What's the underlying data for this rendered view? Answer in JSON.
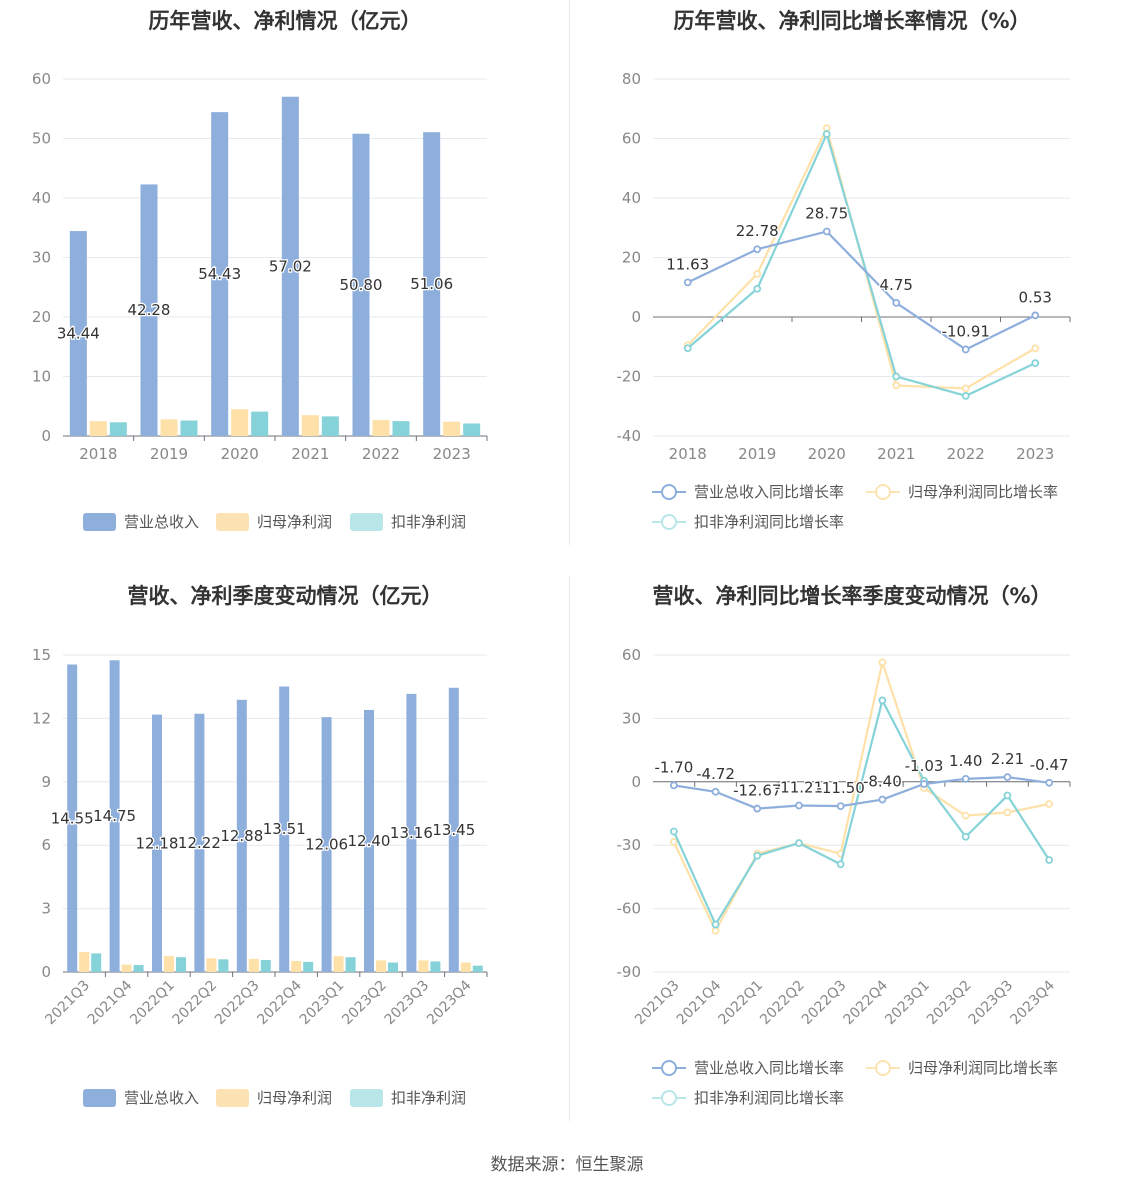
{
  "source": "数据来源：恒生聚源",
  "colors": {
    "revenue": "#8eaedc",
    "net_profit": "#fde1a8",
    "deducted_profit": "#85d3d8",
    "revenue_legend": "#8eaedc",
    "net_profit_legend": "#fde3b3",
    "deducted_profit_legend": "#b9e6e8"
  },
  "panels": [
    {
      "title": "历年营收、净利情况（亿元）",
      "legend": [
        "营业总收入",
        "归母净利润",
        "扣非净利润"
      ],
      "chart_data": {
        "type": "bar",
        "categories": [
          "2018",
          "2019",
          "2020",
          "2021",
          "2022",
          "2023"
        ],
        "series": [
          {
            "name": "营业总收入",
            "values": [
              34.44,
              42.28,
              54.43,
              57.02,
              50.8,
              51.06
            ]
          },
          {
            "name": "归母净利润",
            "values": [
              2.5,
              2.8,
              4.5,
              3.5,
              2.7,
              2.4
            ]
          },
          {
            "name": "扣非净利润",
            "values": [
              2.3,
              2.6,
              4.1,
              3.3,
              2.5,
              2.1
            ]
          }
        ],
        "value_labels": [
          "34.44",
          "42.28",
          "54.43",
          "57.02",
          "50.80",
          "51.06"
        ],
        "ylim": [
          0,
          60
        ],
        "yticks": [
          "0",
          "10",
          "20",
          "30",
          "40",
          "50",
          "60"
        ],
        "grid": true,
        "legend_position": "bottom"
      }
    },
    {
      "title": "历年营收、净利同比增长率情况（%）",
      "legend": [
        "营业总收入同比增长率",
        "归母净利润同比增长率",
        "扣非净利润同比增长率"
      ],
      "chart_data": {
        "type": "line",
        "categories": [
          "2018",
          "2019",
          "2020",
          "2021",
          "2022",
          "2023"
        ],
        "series": [
          {
            "name": "营业总收入同比增长率",
            "values": [
              11.63,
              22.78,
              28.75,
              4.75,
              -10.91,
              0.53
            ]
          },
          {
            "name": "归母净利润同比增长率",
            "values": [
              -9.5,
              14.5,
              63.5,
              -23,
              -24,
              -10.5
            ]
          },
          {
            "name": "扣非净利润同比增长率",
            "values": [
              -10.5,
              9.5,
              61.5,
              -20,
              -26.5,
              -15.5
            ]
          }
        ],
        "value_labels": [
          "11.63",
          "22.78",
          "28.75",
          "4.75",
          "-10.91",
          "0.53"
        ],
        "ylim": [
          -40,
          80
        ],
        "yticks": [
          "-40",
          "-20",
          "0",
          "20",
          "40",
          "60",
          "80"
        ],
        "grid": true,
        "legend_position": "bottom"
      }
    },
    {
      "title": "营收、净利季度变动情况（亿元）",
      "legend": [
        "营业总收入",
        "归母净利润",
        "扣非净利润"
      ],
      "chart_data": {
        "type": "bar",
        "categories": [
          "2021Q3",
          "2021Q4",
          "2022Q1",
          "2022Q2",
          "2022Q3",
          "2022Q4",
          "2023Q1",
          "2023Q2",
          "2023Q3",
          "2023Q4"
        ],
        "series": [
          {
            "name": "营业总收入",
            "values": [
              14.55,
              14.75,
              12.18,
              12.22,
              12.88,
              13.51,
              12.06,
              12.4,
              13.16,
              13.45
            ]
          },
          {
            "name": "归母净利润",
            "values": [
              0.95,
              0.35,
              0.75,
              0.65,
              0.62,
              0.52,
              0.75,
              0.55,
              0.55,
              0.45
            ]
          },
          {
            "name": "扣非净利润",
            "values": [
              0.88,
              0.33,
              0.7,
              0.6,
              0.57,
              0.48,
              0.7,
              0.45,
              0.5,
              0.3
            ]
          }
        ],
        "value_labels": [
          "14.55",
          "14.75",
          "12.18",
          "12.22",
          "12.88",
          "13.51",
          "12.06",
          "12.40",
          "13.16",
          "13.45"
        ],
        "ylim": [
          0,
          15
        ],
        "yticks": [
          "0",
          "3",
          "6",
          "9",
          "12",
          "15"
        ],
        "grid": true,
        "legend_position": "bottom"
      }
    },
    {
      "title": "营收、净利同比增长率季度变动情况（%）",
      "legend": [
        "营业总收入同比增长率",
        "归母净利润同比增长率",
        "扣非净利润同比增长率"
      ],
      "chart_data": {
        "type": "line",
        "categories": [
          "2021Q3",
          "2021Q4",
          "2022Q1",
          "2022Q2",
          "2022Q3",
          "2022Q4",
          "2023Q1",
          "2023Q2",
          "2023Q3",
          "2023Q4"
        ],
        "series": [
          {
            "name": "营业总收入同比增长率",
            "values": [
              -1.7,
              -4.72,
              -12.67,
              -11.21,
              -11.5,
              -8.4,
              -1.03,
              1.4,
              2.21,
              -0.47
            ]
          },
          {
            "name": "归母净利润同比增长率",
            "values": [
              -28.5,
              -70.5,
              -34,
              -29,
              -34,
              56.5,
              -3,
              -16,
              -14.5,
              -10.5
            ]
          },
          {
            "name": "扣非净利润同比增长率",
            "values": [
              -23.5,
              -67.5,
              -35,
              -29,
              -39,
              38.5,
              0.5,
              -26,
              -6.5,
              -37
            ]
          }
        ],
        "value_labels": [
          "-1.70",
          "-4.72",
          "-12.67",
          "-11.21",
          "-11.50",
          "-8.40",
          "-1.03",
          "1.40",
          "2.21",
          "-0.47"
        ],
        "ylim": [
          -90,
          60
        ],
        "yticks": [
          "-90",
          "-60",
          "-30",
          "0",
          "30",
          "60"
        ],
        "grid": true,
        "legend_position": "bottom"
      }
    }
  ]
}
